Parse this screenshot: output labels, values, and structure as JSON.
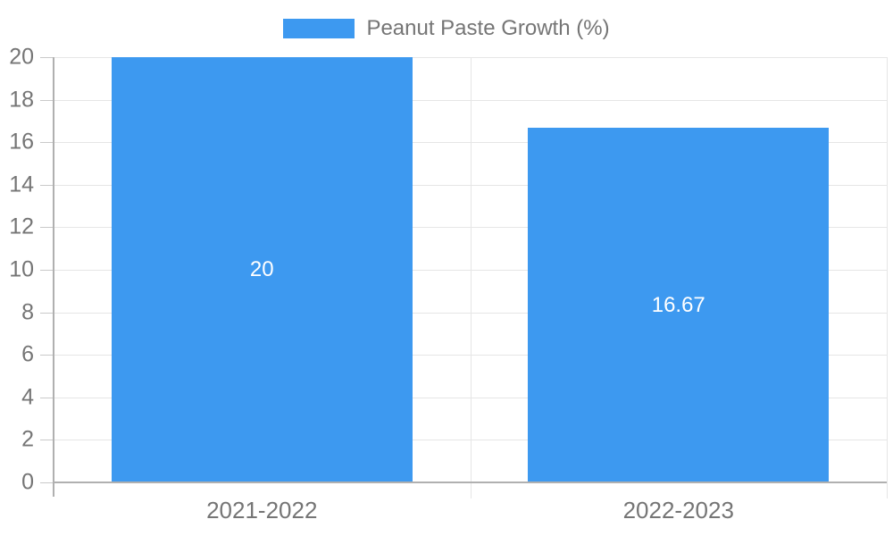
{
  "legend": {
    "label": "Peanut Paste Growth (%)",
    "swatch_color": "#3d99f0"
  },
  "chart_data": {
    "type": "bar",
    "title": "",
    "categories": [
      "2021-2022",
      "2022-2023"
    ],
    "values": [
      20,
      16.67
    ],
    "data_labels": [
      "20",
      "16.67"
    ],
    "series_name": "Peanut Paste Growth (%)",
    "xlabel": "",
    "ylabel": "",
    "ylim": [
      0,
      20
    ],
    "yticks": [
      0,
      2,
      4,
      6,
      8,
      10,
      12,
      14,
      16,
      18,
      20
    ],
    "grid": true,
    "legend_position": "top",
    "colors": {
      "bar": "#3d99f0",
      "gridline": "#e6e6e6",
      "axis": "#b0b0b0",
      "tick": "#c9c9c9",
      "tick_text": "#757575",
      "data_label_text": "#ffffff"
    }
  }
}
